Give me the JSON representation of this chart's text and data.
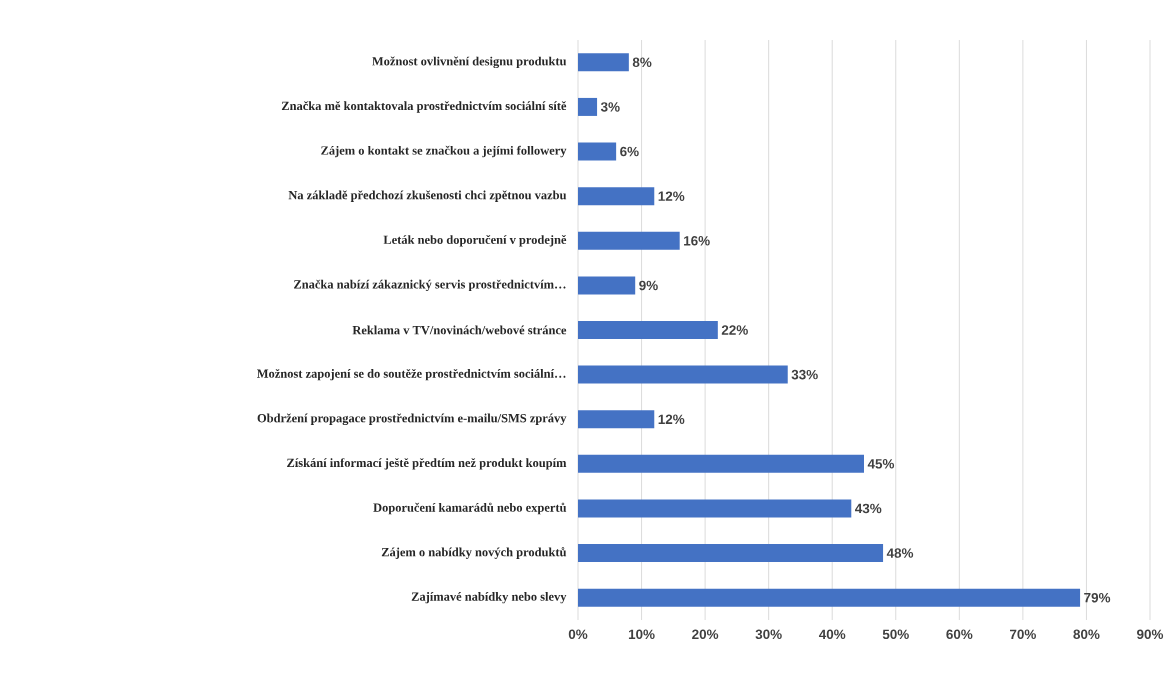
{
  "chart_data": {
    "type": "bar",
    "orientation": "horizontal",
    "categories": [
      "Možnost ovlivnění designu produktu",
      "Značka mě kontaktovala prostřednictvím sociální sítě",
      "Zájem o kontakt se značkou a jejími followery",
      "Na základě předchozí zkušenosti chci zpětnou vazbu",
      "Leták nebo doporučení v prodejně",
      "Značka nabízí zákaznický servis prostřednictvím…",
      "Reklama v TV/novinách/webové stránce",
      "Možnost zapojení se do soutěže prostřednictvím sociální…",
      "Obdržení propagace prostřednictvím e-mailu/SMS zprávy",
      "Získání informací ještě předtím než produkt koupím",
      "Doporučení kamarádů nebo expertů",
      "Zájem o nabídky nových produktů",
      "Zajímavé nabídky nebo slevy"
    ],
    "values": [
      8,
      3,
      6,
      12,
      16,
      9,
      22,
      33,
      12,
      45,
      43,
      48,
      79
    ],
    "value_labels": [
      "8%",
      "3%",
      "6%",
      "12%",
      "16%",
      "9%",
      "22%",
      "33%",
      "12%",
      "45%",
      "43%",
      "48%",
      "79%"
    ],
    "color": "#4472c4",
    "xlim": [
      0,
      90
    ],
    "xticks": [
      {
        "value": 0,
        "label": "0%"
      },
      {
        "value": 10,
        "label": "10%"
      },
      {
        "value": 20,
        "label": "20%"
      },
      {
        "value": 30,
        "label": "30%"
      },
      {
        "value": 40,
        "label": "40%"
      },
      {
        "value": 50,
        "label": "50%"
      },
      {
        "value": 60,
        "label": "60%"
      },
      {
        "value": 70,
        "label": "70%"
      },
      {
        "value": 80,
        "label": "80%"
      },
      {
        "value": 90,
        "label": "90%"
      }
    ],
    "grid": "x"
  }
}
